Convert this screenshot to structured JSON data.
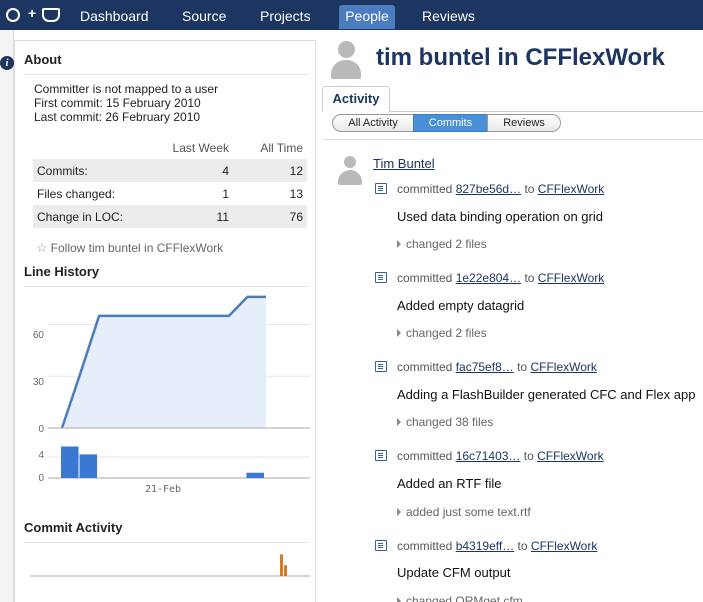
{
  "nav": {
    "items": [
      {
        "label": "Dashboard",
        "active": false
      },
      {
        "label": "Source",
        "active": false
      },
      {
        "label": "Projects",
        "active": false
      },
      {
        "label": "People",
        "active": true
      },
      {
        "label": "Reviews",
        "active": false
      }
    ],
    "bg_color": "#1c3561",
    "active_color": "#4a7cc0"
  },
  "about": {
    "title": "About",
    "line1": "Committer is not mapped to a user",
    "line2": "First commit: 15 February 2010",
    "line3": "Last commit: 26 February 2010",
    "stats": {
      "headers": [
        "",
        "Last Week",
        "All Time"
      ],
      "rows": [
        {
          "label": "Commits:",
          "week": "4",
          "all": "12"
        },
        {
          "label": "Files changed:",
          "week": "1",
          "all": "13"
        },
        {
          "label": "Change in LOC:",
          "week": "11",
          "all": "76"
        }
      ]
    },
    "follow": "Follow tim buntel in CFFlexWork"
  },
  "line_history": {
    "title": "Line History",
    "y_ticks": [
      "60",
      "30",
      "0"
    ],
    "bar_ticks": [
      "4",
      "0"
    ],
    "x_label": "21-Feb"
  },
  "commit_activity": {
    "title": "Commit Activity"
  },
  "chart_data": [
    {
      "type": "area",
      "title": "Line History",
      "x": [
        0,
        1,
        2,
        3,
        4,
        5,
        6,
        7,
        8,
        9,
        10,
        11
      ],
      "values": [
        0,
        32,
        65,
        65,
        65,
        65,
        65,
        65,
        65,
        65,
        76,
        76
      ],
      "ylim": [
        0,
        80
      ],
      "y_ticks": [
        0,
        30,
        60
      ],
      "fill_color": "#e6eefa",
      "line_color": "#4a7cc0"
    },
    {
      "type": "bar",
      "title": "",
      "x": [
        0,
        1,
        10
      ],
      "values": [
        6,
        4.5,
        1
      ],
      "ylim": [
        0,
        8
      ],
      "y_ticks": [
        0,
        4
      ],
      "color": "#3b78d1"
    },
    {
      "type": "bar",
      "title": "Commit Activity",
      "x": [
        0,
        1
      ],
      "values": [
        5,
        2.5
      ],
      "ylim": [
        0,
        6
      ],
      "color": "#d47b2a"
    }
  ],
  "profile": {
    "title": "tim buntel in CFFlexWork",
    "tab": "Activity",
    "filters": [
      {
        "label": "All Activity",
        "active": false
      },
      {
        "label": "Commits",
        "active": true
      },
      {
        "label": "Reviews",
        "active": false
      }
    ],
    "author": "Tim Buntel"
  },
  "commits": [
    {
      "verb": "committed",
      "hash": "827be56d…",
      "to": "to",
      "repo": "CFFlexWork",
      "message": "Used data binding operation on grid",
      "files": "changed 2 files"
    },
    {
      "verb": "committed",
      "hash": "1e22e804…",
      "to": "to",
      "repo": "CFFlexWork",
      "message": "Added empty datagrid",
      "files": "changed 2 files"
    },
    {
      "verb": "committed",
      "hash": "fac75ef8…",
      "to": "to",
      "repo": "CFFlexWork",
      "message": "Adding a FlashBuilder generated CFC and Flex app",
      "files": "changed 38 files"
    },
    {
      "verb": "committed",
      "hash": "16c71403…",
      "to": "to",
      "repo": "CFFlexWork",
      "message": "Added an RTF file",
      "files": "added just some text.rtf"
    },
    {
      "verb": "committed",
      "hash": "b4319eff…",
      "to": "to",
      "repo": "CFFlexWork",
      "message": "Update CFM output",
      "files": "changed ORMget.cfm"
    }
  ]
}
